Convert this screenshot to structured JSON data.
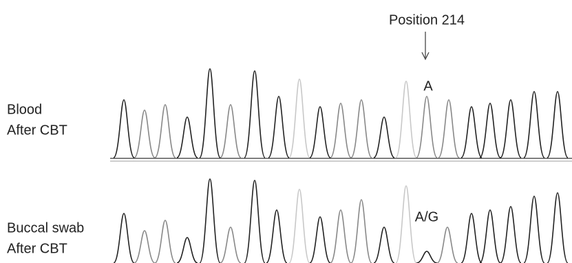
{
  "annotation": {
    "label": "Position 214"
  },
  "panels": [
    {
      "label_lines": [
        "Blood",
        "After CBT"
      ],
      "base_call": "A"
    },
    {
      "label_lines": [
        "Buccal swab",
        "After CBT"
      ],
      "base_call": "A/G"
    }
  ]
}
